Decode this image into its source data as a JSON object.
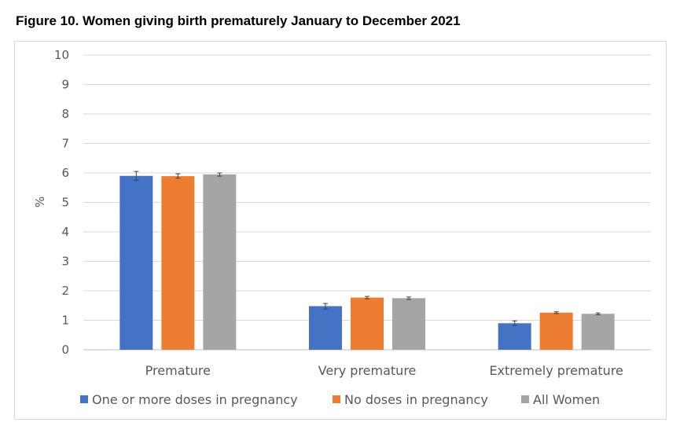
{
  "title": "Figure 10. Women giving birth prematurely January to December 2021",
  "chart_data": {
    "type": "bar",
    "title": "Figure 10. Women giving birth prematurely January to December 2021",
    "xlabel": "",
    "ylabel": "%",
    "ylim": [
      0,
      10
    ],
    "yticks": [
      "0",
      "1",
      "2",
      "3",
      "4",
      "5",
      "6",
      "7",
      "8",
      "9",
      "10"
    ],
    "grid": true,
    "legend_position": "bottom",
    "categories": [
      "Premature",
      "Very premature",
      "Extremely premature"
    ],
    "series": [
      {
        "name": "One or more doses in pregnancy",
        "color": "#4472c4",
        "values": [
          5.9,
          1.48,
          0.9
        ],
        "error_low": [
          5.75,
          1.38,
          0.82
        ],
        "error_high": [
          6.05,
          1.57,
          0.98
        ]
      },
      {
        "name": "No doses in pregnancy",
        "color": "#ed7d31",
        "values": [
          5.89,
          1.77,
          1.26
        ],
        "error_low": [
          5.82,
          1.73,
          1.23
        ],
        "error_high": [
          5.97,
          1.81,
          1.29
        ]
      },
      {
        "name": "All Women",
        "color": "#a5a5a5",
        "values": [
          5.95,
          1.75,
          1.22
        ],
        "error_low": [
          5.89,
          1.71,
          1.19
        ],
        "error_high": [
          6.0,
          1.79,
          1.25
        ]
      }
    ]
  }
}
